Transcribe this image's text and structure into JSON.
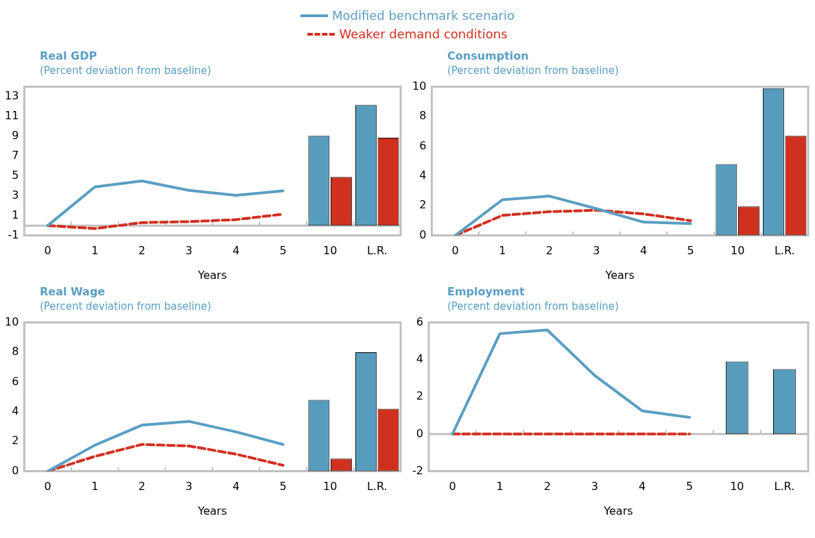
{
  "chart_data": [
    {
      "type": "line",
      "title": "Real GDP",
      "subtitle": "(Percent deviation from baseline)",
      "xlabel": "Years",
      "categories": [
        "0",
        "1",
        "2",
        "3",
        "4",
        "5",
        "10",
        "L.R."
      ],
      "ylim": [
        -1,
        14
      ],
      "yticks": [
        -1,
        1,
        3,
        5,
        7,
        9,
        11,
        13
      ],
      "grid": false,
      "ref_lines": [
        {
          "axis": "y",
          "value": 0,
          "color": "#c0c0c0"
        }
      ],
      "legend": "top",
      "marker": "none",
      "series": [
        {
          "name": "Modified benchmark scenario",
          "color": "#5a9ec4",
          "line_style": "solid",
          "values": [
            0,
            3.9,
            4.5,
            3.55,
            3.05,
            3.5,
            null,
            null
          ]
        },
        {
          "name": "Weaker demand conditions",
          "color": "#d22f1f",
          "line_style": "dashed",
          "values": [
            0,
            -0.3,
            0.3,
            0.4,
            0.6,
            1.15,
            null,
            null
          ]
        },
        {
          "type": "bar",
          "color": "#579cbd",
          "values": [
            null,
            null,
            null,
            null,
            null,
            null,
            9.05,
            12.15
          ]
        },
        {
          "type": "bar",
          "color": "#d0301e",
          "values": [
            null,
            null,
            null,
            null,
            null,
            null,
            4.9,
            8.85
          ]
        }
      ]
    },
    {
      "type": "line",
      "title": "Consumption",
      "subtitle": "(Percent deviation from baseline)",
      "xlabel": "Years",
      "categories": [
        "0",
        "1",
        "2",
        "3",
        "4",
        "5",
        "10",
        "L.R."
      ],
      "ylim": [
        0,
        10
      ],
      "yticks": [
        0,
        2,
        4,
        6,
        8,
        10
      ],
      "grid": false,
      "marker": "none",
      "series": [
        {
          "color": "#5a9ec4",
          "line_style": "solid",
          "values": [
            0,
            2.4,
            2.65,
            1.8,
            0.9,
            0.8,
            null,
            null
          ]
        },
        {
          "color": "#d22f1f",
          "line_style": "dashed",
          "values": [
            0,
            1.35,
            1.6,
            1.7,
            1.45,
            1.0,
            null,
            null
          ]
        },
        {
          "type": "bar",
          "color": "#579cbd",
          "values": [
            null,
            null,
            null,
            null,
            null,
            null,
            4.8,
            9.9
          ]
        },
        {
          "type": "bar",
          "color": "#d0301e",
          "values": [
            null,
            null,
            null,
            null,
            null,
            null,
            1.95,
            6.7
          ]
        }
      ]
    },
    {
      "type": "line",
      "title": "Real Wage",
      "subtitle": "(Percent deviation from baseline)",
      "xlabel": "Years",
      "categories": [
        "0",
        "1",
        "2",
        "3",
        "4",
        "5",
        "10",
        "L.R."
      ],
      "ylim": [
        0,
        10
      ],
      "yticks": [
        0,
        2,
        4,
        6,
        8,
        10
      ],
      "grid": false,
      "marker": "none",
      "series": [
        {
          "color": "#5a9ec4",
          "line_style": "solid",
          "values": [
            0,
            1.75,
            3.1,
            3.35,
            2.65,
            1.8,
            null,
            null
          ]
        },
        {
          "color": "#d22f1f",
          "line_style": "dashed",
          "values": [
            0,
            1.0,
            1.8,
            1.7,
            1.15,
            0.4,
            null,
            null
          ]
        },
        {
          "type": "bar",
          "color": "#579cbd",
          "values": [
            null,
            null,
            null,
            null,
            null,
            null,
            4.8,
            8.0
          ]
        },
        {
          "type": "bar",
          "color": "#d0301e",
          "values": [
            null,
            null,
            null,
            null,
            null,
            null,
            0.85,
            4.2
          ]
        }
      ]
    },
    {
      "type": "line",
      "title": "Employment",
      "subtitle": "(Percent deviation from baseline)",
      "xlabel": "Years",
      "categories": [
        "0",
        "1",
        "2",
        "3",
        "4",
        "5",
        "10",
        "L.R."
      ],
      "ylim": [
        -2,
        6
      ],
      "yticks": [
        -2,
        0,
        2,
        4,
        6
      ],
      "grid": false,
      "ref_lines": [
        {
          "axis": "y",
          "value": 0,
          "color": "#c0c0c0"
        }
      ],
      "marker": "none",
      "series": [
        {
          "color": "#5a9ec4",
          "line_style": "solid",
          "values": [
            0,
            5.4,
            5.6,
            3.15,
            1.25,
            0.9,
            null,
            null
          ]
        },
        {
          "color": "#d22f1f",
          "line_style": "dashed",
          "values": [
            0,
            0,
            0,
            0,
            0,
            0,
            null,
            null
          ]
        },
        {
          "type": "bar",
          "color": "#579cbd",
          "values": [
            null,
            null,
            null,
            null,
            null,
            null,
            3.9,
            3.5
          ]
        }
      ]
    }
  ]
}
